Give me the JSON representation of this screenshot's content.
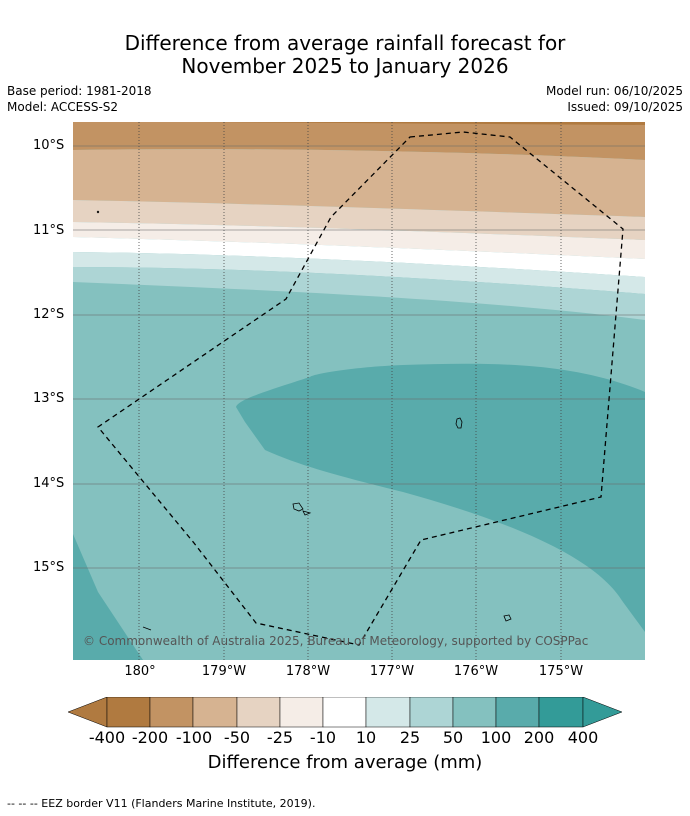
{
  "title": {
    "line1": "Difference from average rainfall forecast for",
    "line2": "November 2025 to January 2026"
  },
  "meta": {
    "base_period": "Base period: 1981-2018",
    "model": "Model: ACCESS-S2",
    "model_run": "Model run: 06/10/2025",
    "issued": "Issued: 09/10/2025"
  },
  "map": {
    "lat_labels": [
      "10°S",
      "11°S",
      "12°S",
      "13°S",
      "14°S",
      "15°S"
    ],
    "lon_labels": [
      "180°",
      "179°W",
      "178°W",
      "177°W",
      "176°W",
      "175°W"
    ],
    "copyright": "© Commonwealth of Australia 2025, Bureau of Meteorology, supported by COSPPac",
    "colors": {
      "c_m400": "#b07a40",
      "c_m200": "#c29363",
      "c_m100": "#d6b391",
      "c_m50": "#e6d3c2",
      "c_m25": "#f5ede7",
      "c_neutral": "#ffffff",
      "c_p10": "#d4e8e8",
      "c_p25": "#add5d5",
      "c_p50": "#84c1bf",
      "c_p100": "#59abab",
      "c_p200": "#339b98"
    }
  },
  "colorbar": {
    "labels": [
      "-400",
      "-200",
      "-100",
      "-50",
      "-25",
      "-10",
      "10",
      "25",
      "50",
      "100",
      "200",
      "400"
    ],
    "title": "Difference from average (mm)"
  },
  "footer": "-- -- -- EEZ border V11 (Flanders Marine Institute, 2019)."
}
